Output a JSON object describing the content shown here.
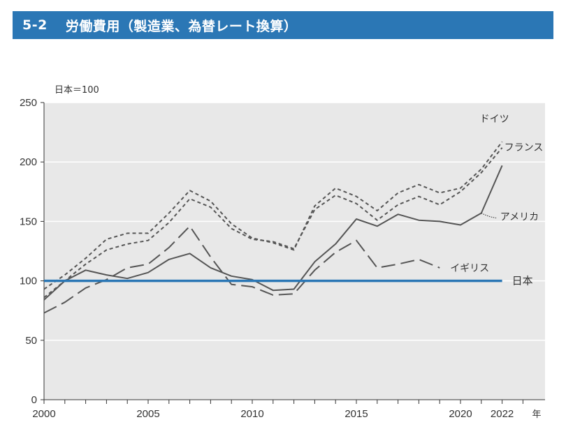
{
  "header": {
    "number": "5-2",
    "title": "労働費用（製造業、為替レート換算）"
  },
  "chart_data": {
    "type": "line",
    "title": "労働費用（製造業、為替レート換算）",
    "ylabel": "日本＝100",
    "xlabel": "年",
    "xlim": [
      2000,
      2023
    ],
    "ylim": [
      0,
      250
    ],
    "y_ticks": [
      0,
      50,
      100,
      150,
      200,
      250
    ],
    "x_tick_labels": [
      "2000",
      "2005",
      "2010",
      "2015",
      "2020",
      "2022"
    ],
    "grid": true,
    "series": [
      {
        "name": "ドイツ",
        "style": "short-dash",
        "color": "#555555",
        "x": [
          2000,
          2001,
          2002,
          2003,
          2004,
          2005,
          2006,
          2007,
          2008,
          2009,
          2010,
          2011,
          2012,
          2013,
          2014,
          2015,
          2016,
          2017,
          2018,
          2019,
          2020,
          2021,
          2022
        ],
        "values": [
          93,
          105,
          119,
          135,
          140,
          140,
          157,
          176,
          167,
          148,
          136,
          132,
          126,
          163,
          178,
          171,
          159,
          174,
          181,
          174,
          178,
          194,
          217
        ]
      },
      {
        "name": "フランス",
        "style": "short-dash",
        "color": "#555555",
        "x": [
          2000,
          2001,
          2002,
          2003,
          2004,
          2005,
          2006,
          2007,
          2008,
          2009,
          2010,
          2011,
          2012,
          2013,
          2014,
          2015,
          2016,
          2017,
          2018,
          2019,
          2020,
          2021,
          2022
        ],
        "values": [
          86,
          100,
          114,
          126,
          131,
          134,
          149,
          169,
          162,
          144,
          135,
          133,
          127,
          160,
          172,
          165,
          151,
          164,
          171,
          164,
          175,
          191,
          212
        ]
      },
      {
        "name": "アメリカ",
        "style": "solid",
        "color": "#555555",
        "x": [
          2000,
          2001,
          2002,
          2003,
          2004,
          2005,
          2006,
          2007,
          2008,
          2009,
          2010,
          2011,
          2012,
          2013,
          2014,
          2015,
          2016,
          2017,
          2018,
          2019,
          2020,
          2021,
          2022
        ],
        "values": [
          84,
          100,
          109,
          105,
          102,
          107,
          118,
          123,
          111,
          104,
          101,
          92,
          93,
          116,
          131,
          152,
          146,
          156,
          151,
          150,
          147,
          157,
          197
        ]
      },
      {
        "name": "イギリス",
        "style": "long-dash",
        "color": "#555555",
        "x": [
          2000,
          2001,
          2002,
          2003,
          2004,
          2005,
          2006,
          2007,
          2008,
          2009,
          2010,
          2011,
          2012,
          2013,
          2014,
          2015,
          2016,
          2017,
          2018,
          2019
        ],
        "values": [
          73,
          82,
          94,
          101,
          111,
          114,
          128,
          146,
          120,
          97,
          95,
          88,
          89,
          109,
          124,
          134,
          111,
          114,
          118,
          111
        ]
      },
      {
        "name": "日本",
        "style": "solid-bold",
        "color": "#2b77b5",
        "x": [
          2000,
          2022
        ],
        "values": [
          100,
          100
        ]
      }
    ]
  }
}
